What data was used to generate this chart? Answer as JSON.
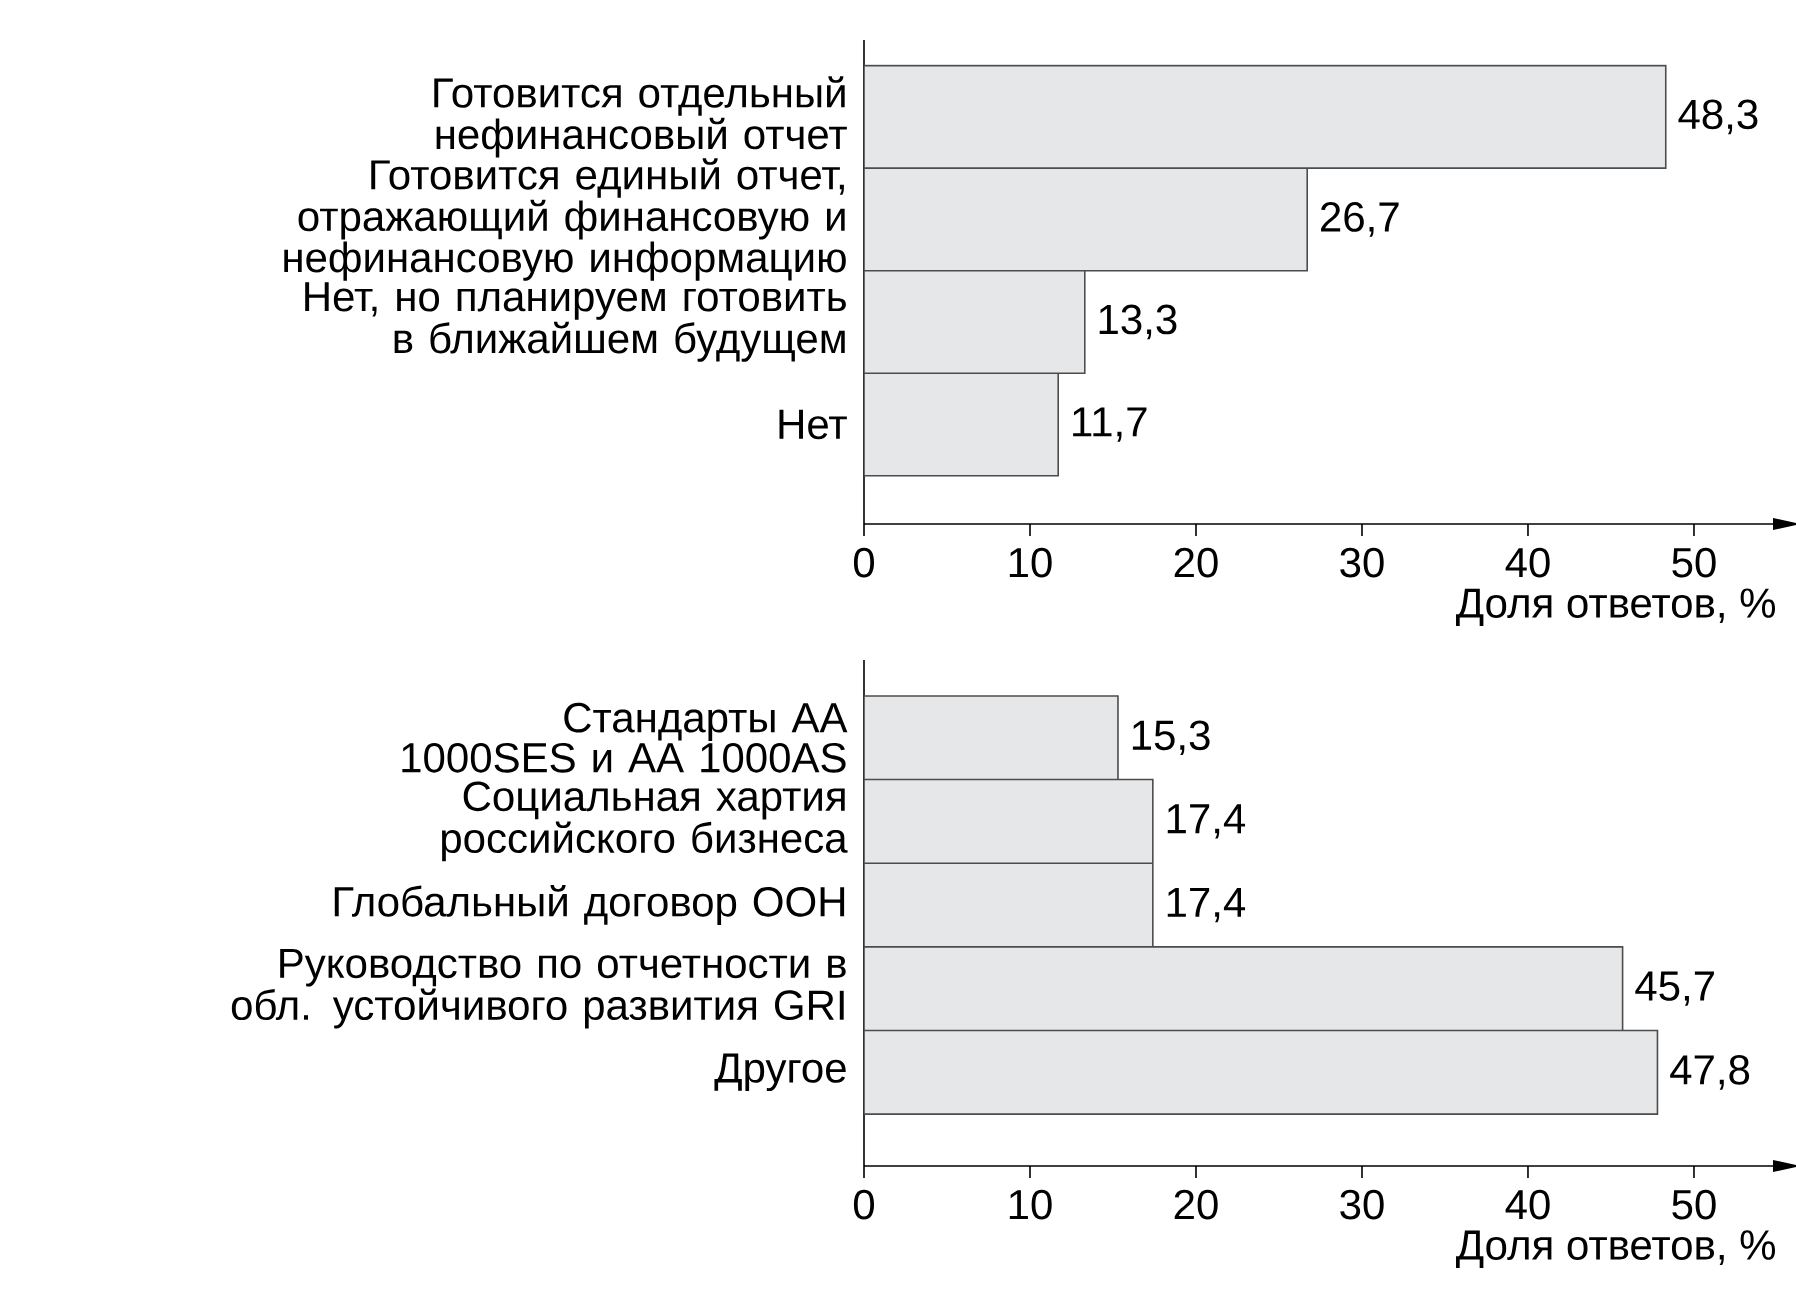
{
  "chart_data": [
    {
      "type": "bar",
      "orientation": "horizontal",
      "color": "#e6e7e8",
      "categories": [
        "Готовится отдельный нефинансовый отчет",
        "Готовится единый отчет, отражающий финансовую и нефинансовую информацию",
        "Нет, но планируем готовить в ближайшем будущем",
        "Нет"
      ],
      "values": [
        48.3,
        26.7,
        13.3,
        11.7
      ],
      "value_labels": [
        "48,3",
        "26,7",
        "13,3",
        "11,7"
      ],
      "xlim": [
        0,
        55
      ],
      "xticks": [
        0,
        10,
        20,
        30,
        40,
        50
      ],
      "xlabel": "Доля ответов, %"
    },
    {
      "type": "bar",
      "orientation": "horizontal",
      "color": "#e6e7e8",
      "categories": [
        "Стандарты АА 1000SES и АА 1000AS",
        "Социальная хартия российского бизнеса",
        "Глобальный договор ООН",
        "Руководство по отчетности в обл. устойчивого развития GRI",
        "Другое"
      ],
      "values": [
        15.3,
        17.4,
        17.4,
        45.7,
        47.8
      ],
      "value_labels": [
        "15,3",
        "17,4",
        "17,4",
        "45,7",
        "47,8"
      ],
      "xlim": [
        0,
        55
      ],
      "xticks": [
        0,
        10,
        20,
        30,
        40,
        50
      ],
      "xlabel": "Доля ответов, %"
    }
  ]
}
